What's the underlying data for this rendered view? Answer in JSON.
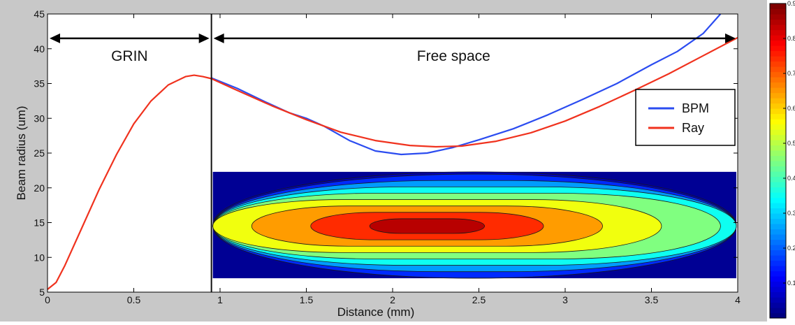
{
  "chart_data": {
    "type": "line",
    "xlabel": "Distance (mm)",
    "ylabel": "Beam radius (um)",
    "xlim": [
      0,
      4
    ],
    "ylim": [
      5,
      45
    ],
    "xticks": [
      0,
      0.5,
      1,
      1.5,
      2,
      2.5,
      3,
      3.5,
      4
    ],
    "yticks": [
      5,
      10,
      15,
      20,
      25,
      30,
      35,
      40,
      45
    ],
    "xtick_labels": [
      "0",
      "0.5",
      "1",
      "1.5",
      "2",
      "2.5",
      "3",
      "3.5",
      "4"
    ],
    "ytick_labels": [
      "5",
      "10",
      "15",
      "20",
      "25",
      "30",
      "35",
      "40",
      "45"
    ],
    "legend": {
      "position": "right",
      "entries": [
        {
          "label": "BPM",
          "color": "#2b4cf0"
        },
        {
          "label": "Ray",
          "color": "#f0321e"
        }
      ]
    },
    "series": [
      {
        "name": "BPM",
        "color": "#2b4cf0",
        "x": [
          0.95,
          1.1,
          1.25,
          1.4,
          1.5,
          1.6,
          1.75,
          1.9,
          2.05,
          2.2,
          2.35,
          2.5,
          2.7,
          2.9,
          3.1,
          3.3,
          3.5,
          3.65,
          3.8,
          3.9
        ],
        "y": [
          35.8,
          34.3,
          32.5,
          30.8,
          30.0,
          28.9,
          26.8,
          25.3,
          24.8,
          25.0,
          25.8,
          26.9,
          28.5,
          30.5,
          32.7,
          35.0,
          37.7,
          39.6,
          42.2,
          45.0
        ]
      },
      {
        "name": "Ray",
        "color": "#f0321e",
        "x": [
          0,
          0.05,
          0.1,
          0.2,
          0.3,
          0.4,
          0.5,
          0.6,
          0.7,
          0.8,
          0.85,
          0.9,
          0.95,
          1.1,
          1.3,
          1.5,
          1.7,
          1.9,
          2.1,
          2.25,
          2.4,
          2.6,
          2.8,
          3.0,
          3.2,
          3.4,
          3.6,
          3.8,
          4.0
        ],
        "y": [
          5.4,
          6.4,
          8.8,
          14.3,
          19.8,
          24.8,
          29.2,
          32.5,
          34.8,
          36.0,
          36.2,
          36.0,
          35.7,
          34.0,
          31.8,
          29.8,
          28.0,
          26.8,
          26.1,
          25.9,
          26.0,
          26.7,
          27.9,
          29.6,
          31.7,
          34.0,
          36.4,
          39.0,
          41.6
        ]
      }
    ],
    "annotations": [
      {
        "label": "GRIN",
        "from_x": 0,
        "to_x": 0.95,
        "y": 41.5
      },
      {
        "label": "Free space",
        "from_x": 0.95,
        "to_x": 4,
        "y": 41.5
      }
    ],
    "divider_x": 0.95,
    "inset_heatmap": {
      "type": "heatmap",
      "x_range": [
        0.95,
        4
      ],
      "y_range": [
        7,
        22.3
      ],
      "peak_x": 2.2,
      "peak_y": 14.5,
      "levels": [
        0.05,
        0.15,
        0.25,
        0.35,
        0.45,
        0.55,
        0.65,
        0.75,
        0.85
      ]
    },
    "colorbar": {
      "range": [
        0,
        0.9
      ],
      "ticks": [
        0.1,
        0.2,
        0.3,
        0.4,
        0.5,
        0.6,
        0.7,
        0.8,
        0.9
      ],
      "tick_labels": [
        "0.1",
        "0.2",
        "0.3",
        "0.4",
        "0.5",
        "0.6",
        "0.7",
        "0.8",
        "0.9"
      ]
    }
  }
}
